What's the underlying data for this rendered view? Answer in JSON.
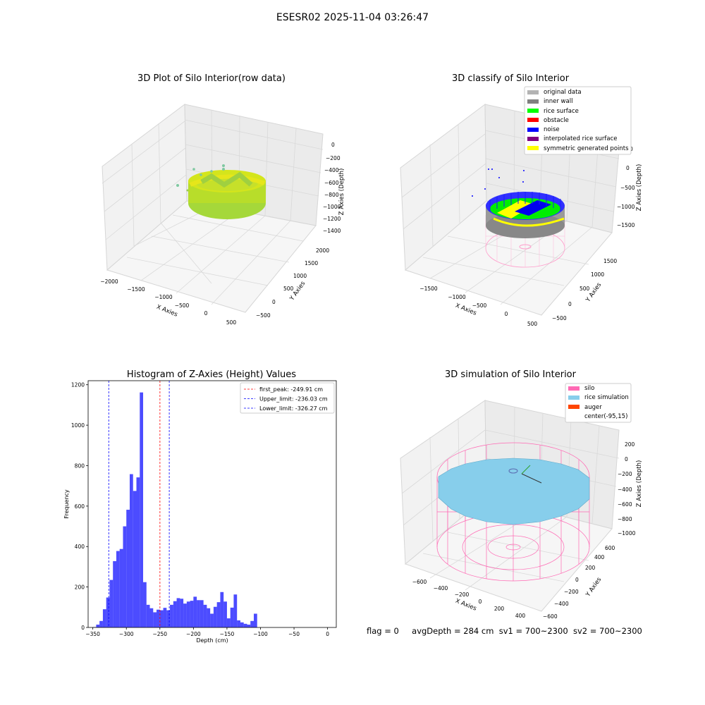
{
  "suptitle": "ESESR02 2025-11-04 03:26:47",
  "panels": {
    "raw": {
      "title": "3D Plot of Silo Interior(row data)",
      "xlabel": "X Axies",
      "ylabel": "Y Axies",
      "zlabel": "Z Axies (Depth)",
      "xticks": [
        "−2000",
        "−1500",
        "−1000",
        "−500",
        "0",
        "500"
      ],
      "yticks": [
        "−500",
        "0",
        "500",
        "1000",
        "1500",
        "2000"
      ],
      "zticks": [
        "0",
        "−200",
        "−400",
        "−600",
        "−800",
        "−1000",
        "−1200",
        "−1400"
      ]
    },
    "classify": {
      "title": "3D classify of Silo Interior",
      "xlabel": "X Axies",
      "ylabel": "Y Axies",
      "zlabel": "Z Axies (Depth)",
      "xticks": [
        "−1500",
        "−1000",
        "−500",
        "0",
        "500"
      ],
      "yticks": [
        "−500",
        "0",
        "500",
        "1000",
        "1500"
      ],
      "zticks": [
        "0",
        "−500",
        "−1000",
        "−1500"
      ],
      "legend": [
        {
          "label": "original data",
          "color": "#b3b3b3"
        },
        {
          "label": "inner wall",
          "color": "#808080"
        },
        {
          "label": "rice surface",
          "color": "#00ff00"
        },
        {
          "label": "obstacle",
          "color": "#ff0000"
        },
        {
          "label": "noise",
          "color": "#0000ff"
        },
        {
          "label": "interpolated rice surface",
          "color": "#800080"
        },
        {
          "label": "symmetric generated points",
          "color": "#ffff00"
        }
      ]
    },
    "simulation": {
      "title": "3D simulation of Silo Interior",
      "xlabel": "X Axies",
      "ylabel": "Y Axies",
      "zlabel": "Z Axies (Depth)",
      "xticks": [
        "−600",
        "−400",
        "−200",
        "0",
        "200",
        "400"
      ],
      "yticks": [
        "−600",
        "−400",
        "−200",
        "0",
        "200",
        "400",
        "600"
      ],
      "zticks": [
        "200",
        "0",
        "−200",
        "−400",
        "−600",
        "−800",
        "−1000"
      ],
      "legend": [
        {
          "label": "silo",
          "color": "#ff69b4"
        },
        {
          "label": "rice simulation",
          "color": "#87ceeb"
        },
        {
          "label": "auger",
          "color": "#ff4500"
        },
        {
          "label": "center(-95,15)",
          "color": "#ffffff"
        }
      ]
    }
  },
  "chart_data": {
    "type": "bar",
    "title": "Histogram of Z-Axies (Height) Values",
    "xlabel": "Depth (cm)",
    "ylabel": "Frequency",
    "xlim": [
      -357,
      13
    ],
    "ylim": [
      0,
      1220
    ],
    "xticks": [
      -350,
      -300,
      -250,
      -200,
      -150,
      -100,
      -50,
      0
    ],
    "xtick_labels": [
      "−350",
      "−300",
      "−250",
      "−200",
      "−150",
      "−100",
      "−50",
      "0"
    ],
    "yticks": [
      0,
      200,
      400,
      600,
      800,
      1000,
      1200
    ],
    "bar_color": "#0000ff",
    "bins": [
      [
        -350,
        -345,
        2
      ],
      [
        -345,
        -340,
        14
      ],
      [
        -340,
        -335,
        32
      ],
      [
        -335,
        -330,
        90
      ],
      [
        -330,
        -325,
        148
      ],
      [
        -325,
        -320,
        235
      ],
      [
        -320,
        -315,
        328
      ],
      [
        -315,
        -310,
        378
      ],
      [
        -310,
        -305,
        388
      ],
      [
        -305,
        -300,
        500
      ],
      [
        -300,
        -295,
        582
      ],
      [
        -295,
        -290,
        758
      ],
      [
        -290,
        -285,
        675
      ],
      [
        -285,
        -280,
        742
      ],
      [
        -280,
        -275,
        1162
      ],
      [
        -275,
        -270,
        224
      ],
      [
        -270,
        -265,
        112
      ],
      [
        -265,
        -260,
        95
      ],
      [
        -260,
        -255,
        75
      ],
      [
        -255,
        -250,
        88
      ],
      [
        -250,
        -245,
        85
      ],
      [
        -245,
        -240,
        97
      ],
      [
        -240,
        -235,
        85
      ],
      [
        -235,
        -230,
        112
      ],
      [
        -230,
        -225,
        130
      ],
      [
        -225,
        -220,
        145
      ],
      [
        -220,
        -215,
        142
      ],
      [
        -215,
        -210,
        118
      ],
      [
        -210,
        -205,
        128
      ],
      [
        -205,
        -200,
        132
      ],
      [
        -200,
        -195,
        152
      ],
      [
        -195,
        -190,
        135
      ],
      [
        -190,
        -185,
        135
      ],
      [
        -185,
        -180,
        112
      ],
      [
        -180,
        -175,
        95
      ],
      [
        -175,
        -170,
        68
      ],
      [
        -170,
        -165,
        102
      ],
      [
        -165,
        -160,
        125
      ],
      [
        -160,
        -155,
        175
      ],
      [
        -155,
        -150,
        128
      ],
      [
        -150,
        -145,
        45
      ],
      [
        -145,
        -140,
        98
      ],
      [
        -140,
        -135,
        163
      ],
      [
        -135,
        -130,
        35
      ],
      [
        -130,
        -125,
        25
      ],
      [
        -125,
        -120,
        18
      ],
      [
        -120,
        -115,
        14
      ],
      [
        -115,
        -110,
        32
      ],
      [
        -110,
        -105,
        68
      ]
    ],
    "lines": [
      {
        "label": "first_peak: -249.91 cm",
        "x": -249.91,
        "color": "#ff0000"
      },
      {
        "label": "Upper_limit: -236.03 cm",
        "x": -236.03,
        "color": "#0000ff"
      },
      {
        "label": "Lower_limit: -326.27 cm",
        "x": -326.27,
        "color": "#0000ff"
      }
    ]
  },
  "status": {
    "flag": "flag = 0",
    "avg_depth": "avgDepth = 284 cm",
    "sv1": "sv1 = 700~2300",
    "sv2": "sv2 = 700~2300"
  }
}
